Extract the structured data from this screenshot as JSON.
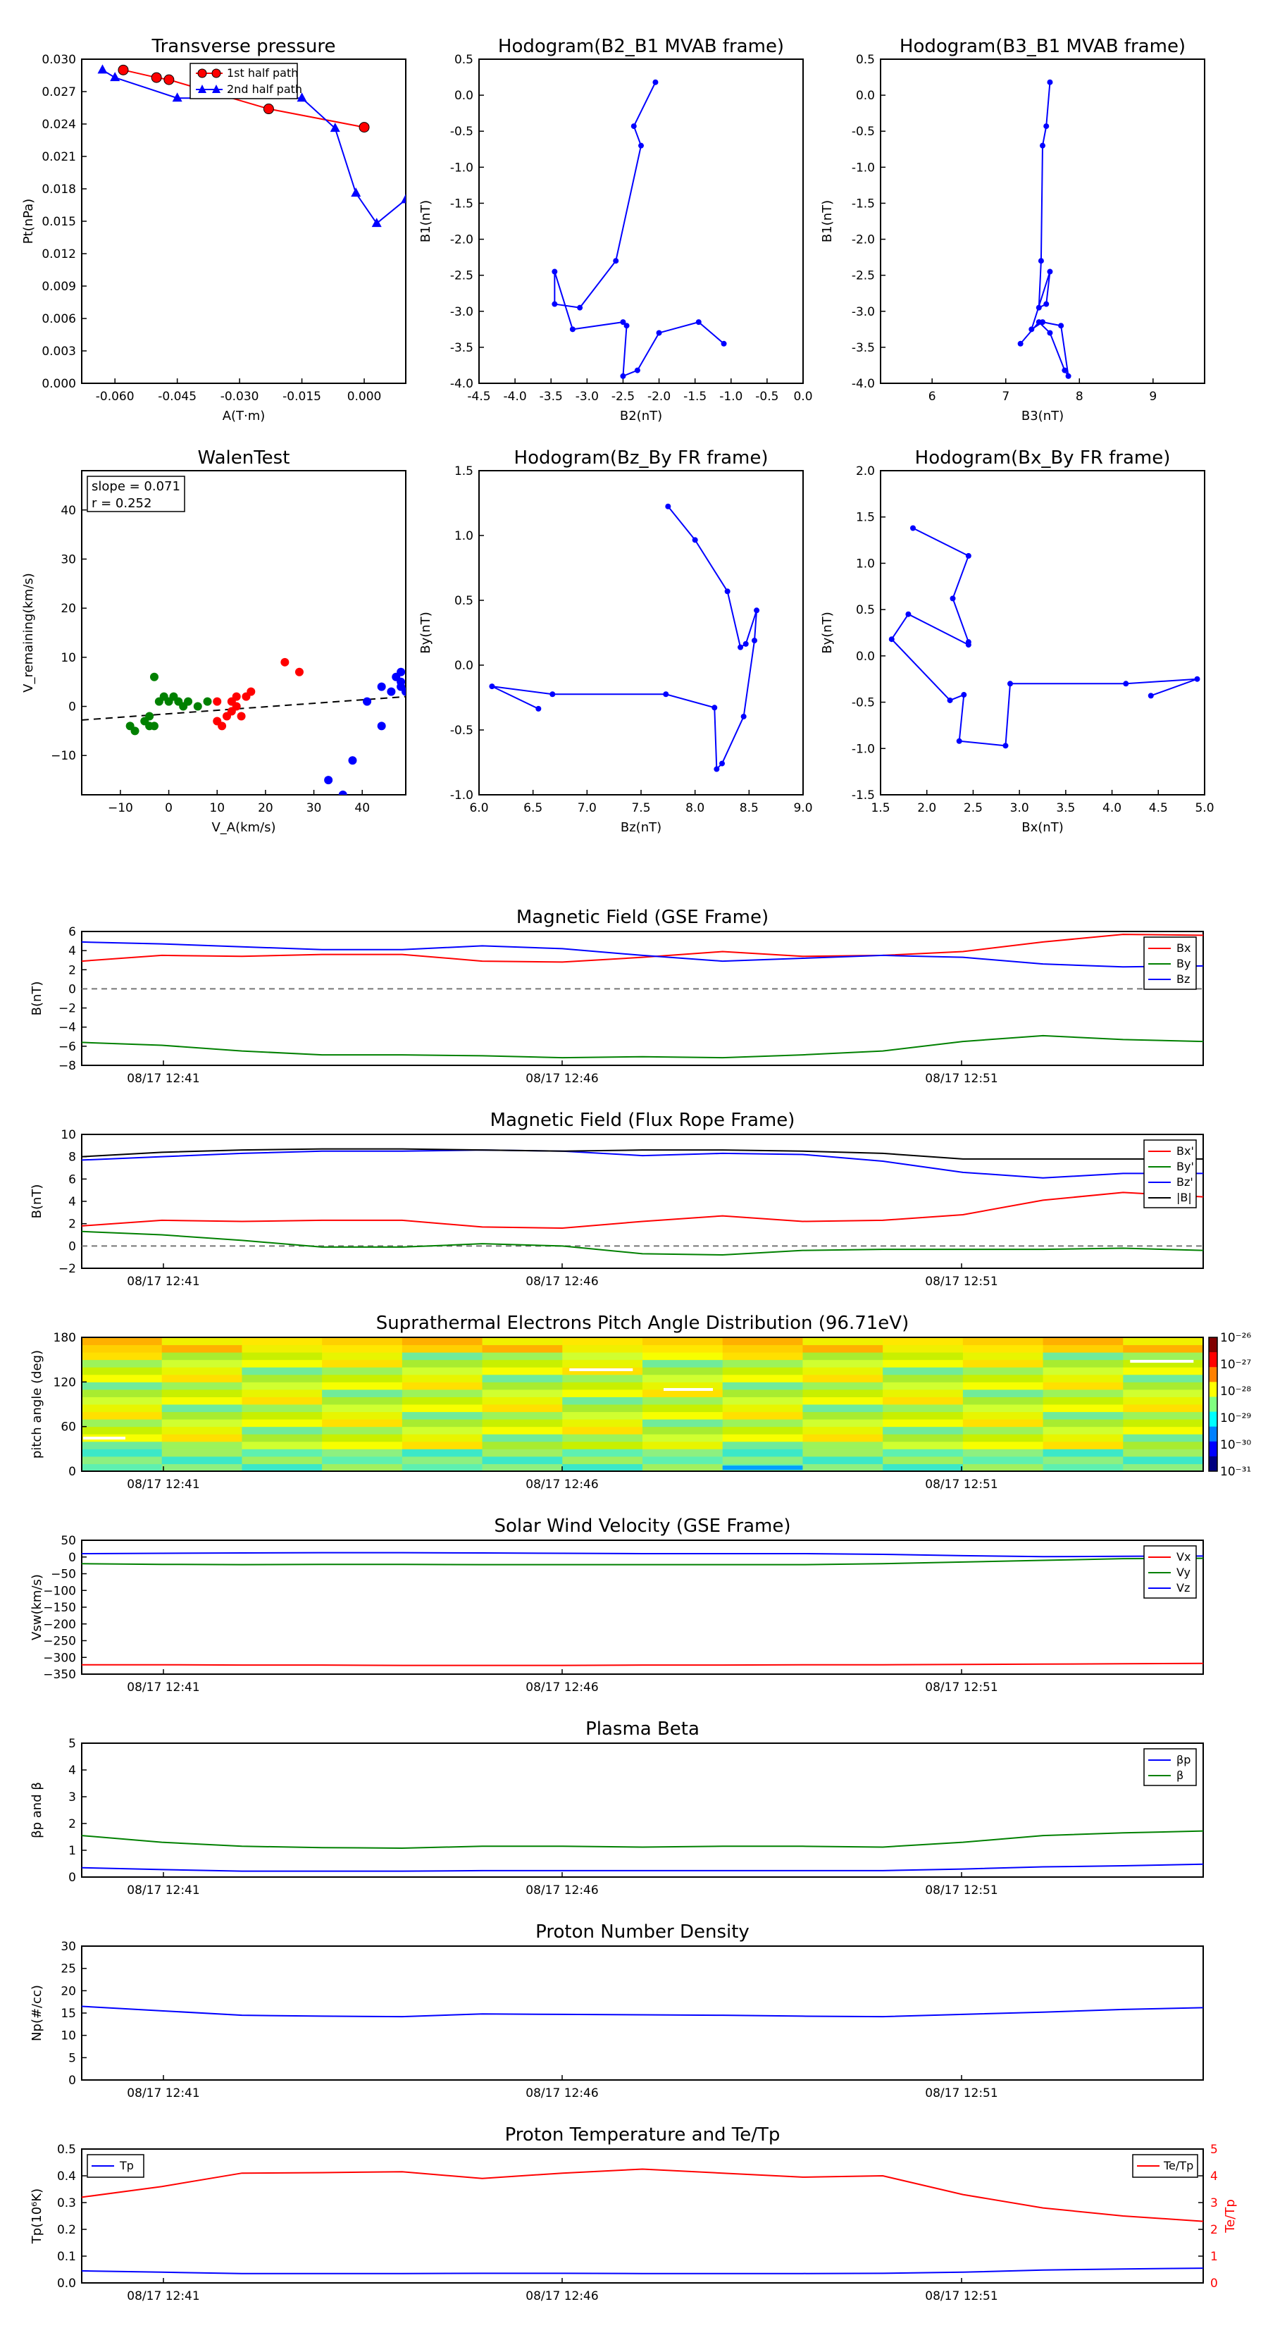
{
  "colors": {
    "red": "#ff0000",
    "green": "#008000",
    "blue": "#0000ff",
    "black": "#000000"
  },
  "panels": {
    "pt": {
      "title": "Transverse pressure",
      "xlabel": "A(T·m)",
      "ylabel": "Pt(nPa)",
      "xticks": [
        "-0.060",
        "-0.045",
        "-0.030",
        "-0.015",
        "0.000"
      ],
      "yticks": [
        "0.000",
        "0.003",
        "0.006",
        "0.009",
        "0.012",
        "0.015",
        "0.018",
        "0.021",
        "0.024",
        "0.027",
        "0.030"
      ],
      "legend": [
        "1st half path",
        "2nd half path"
      ]
    },
    "h1": {
      "title": "Hodogram(B2_B1 MVAB frame)",
      "xlabel": "B2(nT)",
      "ylabel": "B1(nT)",
      "xticks": [
        "-4.5",
        "-4.0",
        "-3.5",
        "-3.0",
        "-2.5",
        "-2.0",
        "-1.5",
        "-1.0",
        "-0.5",
        "0.0"
      ],
      "yticks": [
        "-4.0",
        "-3.5",
        "-3.0",
        "-2.5",
        "-2.0",
        "-1.5",
        "-1.0",
        "-0.5",
        "0.0",
        "0.5"
      ]
    },
    "h2": {
      "title": "Hodogram(B3_B1 MVAB frame)",
      "xlabel": "B3(nT)",
      "ylabel": "B1(nT)",
      "xticks": [
        "6",
        "7",
        "8",
        "9"
      ],
      "yticks": [
        "-4.0",
        "-3.5",
        "-3.0",
        "-2.5",
        "-2.0",
        "-1.5",
        "-1.0",
        "-0.5",
        "0.0",
        "0.5"
      ]
    },
    "walen": {
      "title": "WalenTest",
      "xlabel": "V_A(km/s)",
      "ylabel": "V_remaining(km/s)",
      "xticks": [
        "−10",
        "0",
        "10",
        "20",
        "30",
        "40"
      ],
      "yticks": [
        "−10",
        "0",
        "10",
        "20",
        "30",
        "40"
      ],
      "slope_text": "slope = 0.071",
      "r_text": "r = 0.252"
    },
    "h3": {
      "title": "Hodogram(Bz_By FR frame)",
      "xlabel": "Bz(nT)",
      "ylabel": "By(nT)",
      "xticks": [
        "6.0",
        "6.5",
        "7.0",
        "7.5",
        "8.0",
        "8.5",
        "9.0"
      ],
      "yticks": [
        "-1.0",
        "-0.5",
        "0.0",
        "0.5",
        "1.0",
        "1.5"
      ]
    },
    "h4": {
      "title": "Hodogram(Bx_By FR frame)",
      "xlabel": "Bx(nT)",
      "ylabel": "By(nT)",
      "xticks": [
        "1.5",
        "2.0",
        "2.5",
        "3.0",
        "3.5",
        "4.0",
        "4.5",
        "5.0"
      ],
      "yticks": [
        "-1.5",
        "-1.0",
        "-0.5",
        "0.0",
        "0.5",
        "1.0",
        "1.5",
        "2.0"
      ]
    },
    "ts_xticks": [
      "08/17 12:41",
      "08/17 12:46",
      "08/17 12:51"
    ],
    "bgse": {
      "title": "Magnetic Field (GSE Frame)",
      "ylabel": "B(nT)",
      "yticks": [
        "−8",
        "−6",
        "−4",
        "−2",
        "0",
        "2",
        "4",
        "6"
      ],
      "legend": [
        "Bx",
        "By",
        "Bz"
      ]
    },
    "bfr": {
      "title": "Magnetic Field (Flux Rope Frame)",
      "ylabel": "B(nT)",
      "yticks": [
        "−2",
        "0",
        "2",
        "4",
        "6",
        "8",
        "10"
      ],
      "legend": [
        "Bx'",
        "By'",
        "Bz'",
        "|B|"
      ]
    },
    "pad": {
      "title": "Suprathermal Electrons Pitch Angle Distribution (96.71eV)",
      "ylabel": "pitch angle (deg)",
      "yticks": [
        "0",
        "60",
        "120",
        "180"
      ],
      "cbar_ticks": [
        "10⁻²⁶",
        "10⁻²⁷",
        "10⁻²⁸",
        "10⁻²⁹",
        "10⁻³⁰",
        "10⁻³¹"
      ]
    },
    "vsw": {
      "title": "Solar Wind Velocity (GSE Frame)",
      "ylabel": "Vsw(km/s)",
      "yticks": [
        "−350",
        "−300",
        "−250",
        "−200",
        "−150",
        "−100",
        "−50",
        "0",
        "50"
      ],
      "legend": [
        "Vx",
        "Vy",
        "Vz"
      ]
    },
    "beta": {
      "title": "Plasma Beta",
      "ylabel": "βp and β",
      "yticks": [
        "0",
        "1",
        "2",
        "3",
        "4",
        "5"
      ],
      "legend": [
        "βp",
        "β"
      ]
    },
    "np": {
      "title": "Proton Number Density",
      "ylabel": "Np(#/cc)",
      "yticks": [
        "0",
        "5",
        "10",
        "15",
        "20",
        "25",
        "30"
      ]
    },
    "tp": {
      "title": "Proton Temperature and Te/Tp",
      "ylabel": "Tp(10⁶K)",
      "ylabel2": "Te/Tp",
      "yticks": [
        "0.0",
        "0.1",
        "0.2",
        "0.3",
        "0.4",
        "0.5"
      ],
      "yticks2": [
        "0",
        "1",
        "2",
        "3",
        "4",
        "5"
      ],
      "legend1": "Tp",
      "legend2": "Te/Tp"
    }
  },
  "chart_data": [
    {
      "type": "line",
      "title": "Transverse pressure",
      "xlabel": "A(T·m)",
      "ylabel": "Pt(nPa)",
      "xlim": [
        -0.068,
        0.01
      ],
      "ylim": [
        0,
        0.03
      ],
      "series": [
        {
          "name": "1st half path",
          "x": [
            0.0,
            -0.023,
            -0.047,
            -0.05,
            -0.058
          ],
          "y": [
            0.0237,
            0.0254,
            0.0281,
            0.0283,
            0.029
          ]
        },
        {
          "name": "2nd half path",
          "x": [
            -0.063,
            -0.06,
            -0.045,
            -0.015,
            -0.007,
            -0.002,
            0.003,
            0.01
          ],
          "y": [
            0.029,
            0.0283,
            0.0264,
            0.0264,
            0.0236,
            0.0176,
            0.0148,
            0.017
          ]
        }
      ]
    },
    {
      "type": "line",
      "title": "Hodogram(B2_B1 MVAB frame)",
      "xlabel": "B2(nT)",
      "ylabel": "B1(nT)",
      "xlim": [
        -4.5,
        0
      ],
      "ylim": [
        -4,
        0.5
      ],
      "x": [
        -2.05,
        -2.35,
        -2.25,
        -2.6,
        -3.1,
        -3.45,
        -3.45,
        -3.2,
        -2.5,
        -2.45,
        -2.5,
        -2.3,
        -2.0,
        -1.45,
        -1.1
      ],
      "y": [
        0.18,
        -0.43,
        -0.7,
        -2.3,
        -2.95,
        -2.9,
        -2.45,
        -3.25,
        -3.15,
        -3.2,
        -3.9,
        -3.82,
        -3.3,
        -3.15,
        -3.45
      ]
    },
    {
      "type": "line",
      "title": "Hodogram(B3_B1 MVAB frame)",
      "xlabel": "B3(nT)",
      "ylabel": "B1(nT)",
      "xlim": [
        5.3,
        9.7
      ],
      "ylim": [
        -4,
        0.5
      ],
      "x": [
        7.6,
        7.55,
        7.5,
        7.48,
        7.45,
        7.55,
        7.6,
        7.35,
        7.5,
        7.75,
        7.85,
        7.8,
        7.6,
        7.45,
        7.2
      ],
      "y": [
        0.18,
        -0.43,
        -0.7,
        -2.3,
        -2.95,
        -2.9,
        -2.45,
        -3.25,
        -3.15,
        -3.2,
        -3.9,
        -3.82,
        -3.3,
        -3.15,
        -3.45
      ]
    },
    {
      "type": "scatter",
      "title": "WalenTest",
      "xlabel": "V_A(km/s)",
      "ylabel": "V_remaining(km/s)",
      "xlim": [
        -18,
        49
      ],
      "ylim": [
        -18,
        48
      ],
      "fit": {
        "slope": 0.071,
        "intercept": -1.5
      },
      "series": [
        {
          "color": "green",
          "x": [
            -8,
            -7,
            -5,
            -4,
            -3,
            -2,
            -1,
            0,
            1,
            2,
            3,
            4,
            6,
            8,
            -4,
            -3
          ],
          "y": [
            -4,
            -5,
            -3,
            -4,
            6,
            1,
            2,
            1,
            2,
            1,
            0,
            1,
            0,
            1,
            -2,
            -4
          ]
        },
        {
          "color": "red",
          "x": [
            10,
            11,
            12,
            13,
            13,
            14,
            14,
            15,
            16,
            17,
            24,
            27,
            10
          ],
          "y": [
            1,
            -4,
            -2,
            -1,
            1,
            0,
            2,
            -2,
            2,
            3,
            9,
            7,
            -3
          ]
        },
        {
          "color": "blue",
          "x": [
            33,
            36,
            38,
            41,
            44,
            44,
            46,
            47,
            48,
            48,
            48,
            49
          ],
          "y": [
            -15,
            -18,
            -11,
            1,
            -4,
            4,
            3,
            6,
            7,
            4,
            5,
            3
          ]
        }
      ]
    },
    {
      "type": "line",
      "title": "Hodogram(Bz_By FR frame)",
      "xlabel": "Bz(nT)",
      "ylabel": "By(nT)",
      "xlim": [
        6,
        9
      ],
      "ylim": [
        -1.2,
        1.7
      ],
      "x": [
        7.75,
        8.0,
        8.3,
        8.42,
        8.47,
        8.57,
        8.55,
        8.45,
        8.25,
        8.2,
        8.18,
        7.73,
        6.68,
        6.12,
        6.55
      ],
      "y": [
        1.38,
        1.08,
        0.62,
        0.12,
        0.15,
        0.45,
        0.18,
        -0.5,
        -0.92,
        -0.97,
        -0.42,
        -0.3,
        -0.3,
        -0.23,
        -0.43
      ]
    },
    {
      "type": "line",
      "title": "Hodogram(Bx_By FR frame)",
      "xlabel": "Bx(nT)",
      "ylabel": "By(nT)",
      "xlim": [
        1.5,
        5.0
      ],
      "ylim": [
        -1.5,
        2.0
      ],
      "x": [
        1.85,
        2.45,
        2.28,
        2.45,
        2.45,
        1.8,
        1.62,
        2.25,
        2.4,
        2.35,
        2.85,
        2.9,
        4.15,
        4.92,
        4.42
      ],
      "y": [
        1.38,
        1.08,
        0.62,
        0.15,
        0.12,
        0.45,
        0.18,
        -0.48,
        -0.42,
        -0.92,
        -0.97,
        -0.3,
        -0.3,
        -0.25,
        -0.43
      ]
    },
    {
      "type": "line",
      "title": "Magnetic Field (GSE Frame)",
      "ylabel": "B(nT)",
      "ylim": [
        -8,
        6
      ],
      "x": [
        0,
        1,
        2,
        3,
        4,
        5,
        6,
        7,
        8,
        9,
        10,
        11,
        12,
        13,
        14
      ],
      "series": [
        {
          "name": "Bx",
          "values": [
            2.9,
            3.5,
            3.4,
            3.6,
            3.6,
            2.9,
            2.8,
            3.3,
            3.9,
            3.4,
            3.5,
            3.9,
            4.9,
            5.7,
            5.6
          ]
        },
        {
          "name": "By",
          "values": [
            -5.6,
            -5.9,
            -6.5,
            -6.9,
            -6.9,
            -7.0,
            -7.2,
            -7.1,
            -7.2,
            -6.9,
            -6.5,
            -5.5,
            -4.9,
            -5.3,
            -5.5
          ]
        },
        {
          "name": "Bz",
          "values": [
            4.9,
            4.7,
            4.4,
            4.1,
            4.1,
            4.5,
            4.2,
            3.5,
            2.9,
            3.2,
            3.5,
            3.3,
            2.6,
            2.3,
            2.4
          ]
        }
      ]
    },
    {
      "type": "line",
      "title": "Magnetic Field (Flux Rope Frame)",
      "ylabel": "B(nT)",
      "ylim": [
        -2,
        10
      ],
      "x": [
        0,
        1,
        2,
        3,
        4,
        5,
        6,
        7,
        8,
        9,
        10,
        11,
        12,
        13,
        14
      ],
      "series": [
        {
          "name": "Bx'",
          "values": [
            1.8,
            2.3,
            2.2,
            2.3,
            2.3,
            1.7,
            1.6,
            2.2,
            2.7,
            2.2,
            2.3,
            2.8,
            4.1,
            4.8,
            4.4
          ]
        },
        {
          "name": "By'",
          "values": [
            1.3,
            1.0,
            0.5,
            -0.1,
            -0.1,
            0.2,
            0.0,
            -0.7,
            -0.8,
            -0.4,
            -0.3,
            -0.3,
            -0.3,
            -0.2,
            -0.4
          ]
        },
        {
          "name": "Bz'",
          "values": [
            7.7,
            8.0,
            8.3,
            8.5,
            8.5,
            8.6,
            8.5,
            8.1,
            8.3,
            8.2,
            7.6,
            6.6,
            6.1,
            6.5,
            6.5
          ]
        },
        {
          "name": "|B|",
          "values": [
            8.0,
            8.4,
            8.6,
            8.7,
            8.7,
            8.6,
            8.5,
            8.6,
            8.6,
            8.5,
            8.3,
            7.8,
            7.8,
            7.8,
            7.8
          ]
        }
      ]
    },
    {
      "type": "heatmap",
      "title": "Suprathermal Electrons Pitch Angle Distribution (96.71eV)",
      "ylabel": "pitch angle (deg)",
      "ylim": [
        0,
        180
      ],
      "colorbar": "log, 1e-31 to 1e-26"
    },
    {
      "type": "line",
      "title": "Solar Wind Velocity (GSE Frame)",
      "ylabel": "Vsw(km/s)",
      "ylim": [
        -350,
        50
      ],
      "x": [
        0,
        1,
        2,
        3,
        4,
        5,
        6,
        7,
        8,
        9,
        10,
        11,
        12,
        13,
        14
      ],
      "series": [
        {
          "name": "Vx",
          "values": [
            -322,
            -322,
            -323,
            -323,
            -324,
            -324,
            -324,
            -323,
            -323,
            -322,
            -322,
            -321,
            -320,
            -319,
            -318
          ]
        },
        {
          "name": "Vy",
          "values": [
            -20,
            -22,
            -23,
            -22,
            -22,
            -23,
            -23,
            -23,
            -23,
            -23,
            -20,
            -15,
            -10,
            -5,
            -4
          ]
        },
        {
          "name": "Vz",
          "values": [
            10,
            11,
            12,
            13,
            13,
            12,
            11,
            10,
            10,
            10,
            8,
            4,
            1,
            2,
            3
          ]
        }
      ]
    },
    {
      "type": "line",
      "title": "Plasma Beta",
      "ylabel": "βp and β",
      "ylim": [
        0,
        5
      ],
      "x": [
        0,
        1,
        2,
        3,
        4,
        5,
        6,
        7,
        8,
        9,
        10,
        11,
        12,
        13,
        14
      ],
      "series": [
        {
          "name": "βp",
          "values": [
            0.35,
            0.28,
            0.22,
            0.22,
            0.22,
            0.24,
            0.24,
            0.24,
            0.24,
            0.24,
            0.24,
            0.3,
            0.38,
            0.42,
            0.48
          ]
        },
        {
          "name": "β",
          "values": [
            1.55,
            1.3,
            1.15,
            1.1,
            1.08,
            1.15,
            1.15,
            1.12,
            1.15,
            1.15,
            1.12,
            1.3,
            1.55,
            1.65,
            1.72
          ]
        }
      ]
    },
    {
      "type": "line",
      "title": "Proton Number Density",
      "ylabel": "Np(#/cc)",
      "ylim": [
        0,
        30
      ],
      "x": [
        0,
        1,
        2,
        3,
        4,
        5,
        6,
        7,
        8,
        9,
        10,
        11,
        12,
        13,
        14
      ],
      "series": [
        {
          "name": "Np",
          "values": [
            16.5,
            15.5,
            14.5,
            14.3,
            14.2,
            14.8,
            14.7,
            14.6,
            14.5,
            14.3,
            14.2,
            14.7,
            15.2,
            15.8,
            16.2
          ]
        }
      ]
    },
    {
      "type": "line",
      "title": "Proton Temperature and Te/Tp",
      "ylabel": "Tp(10⁶K)",
      "ylim": [
        0,
        0.5
      ],
      "y2label": "Te/Tp",
      "y2lim": [
        0,
        5
      ],
      "x": [
        0,
        1,
        2,
        3,
        4,
        5,
        6,
        7,
        8,
        9,
        10,
        11,
        12,
        13,
        14
      ],
      "series": [
        {
          "name": "Tp",
          "axis": "left",
          "values": [
            0.045,
            0.04,
            0.035,
            0.035,
            0.035,
            0.036,
            0.036,
            0.035,
            0.035,
            0.035,
            0.036,
            0.04,
            0.048,
            0.052,
            0.055
          ]
        },
        {
          "name": "Te/Tp",
          "axis": "right",
          "values": [
            3.2,
            3.6,
            4.1,
            4.12,
            4.15,
            3.9,
            4.1,
            4.25,
            4.1,
            3.95,
            4.0,
            3.3,
            2.8,
            2.5,
            2.3
          ]
        }
      ]
    }
  ]
}
